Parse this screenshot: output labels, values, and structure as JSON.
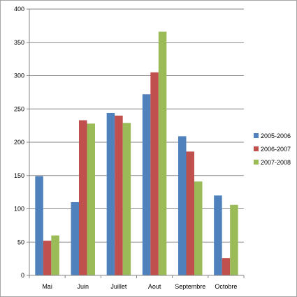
{
  "chart_data": {
    "type": "bar",
    "title": "",
    "xlabel": "",
    "ylabel": "",
    "categories": [
      "Mai",
      "Juin",
      "Juillet",
      "Aout",
      "Septembre",
      "Octobre"
    ],
    "series": [
      {
        "name": "2005-2006",
        "color": "#4f81bd",
        "values": [
          149,
          110,
          244,
          272,
          209,
          120
        ]
      },
      {
        "name": "2006-2007",
        "color": "#c0504d",
        "values": [
          52,
          233,
          240,
          305,
          186,
          26
        ]
      },
      {
        "name": "2007-2008",
        "color": "#9bbb59",
        "values": [
          60,
          228,
          229,
          366,
          141,
          106
        ]
      }
    ],
    "ylim": [
      0,
      400
    ],
    "yticks": [
      0,
      50,
      100,
      150,
      200,
      250,
      300,
      350,
      400
    ],
    "grid": true,
    "legend_position": "right"
  }
}
